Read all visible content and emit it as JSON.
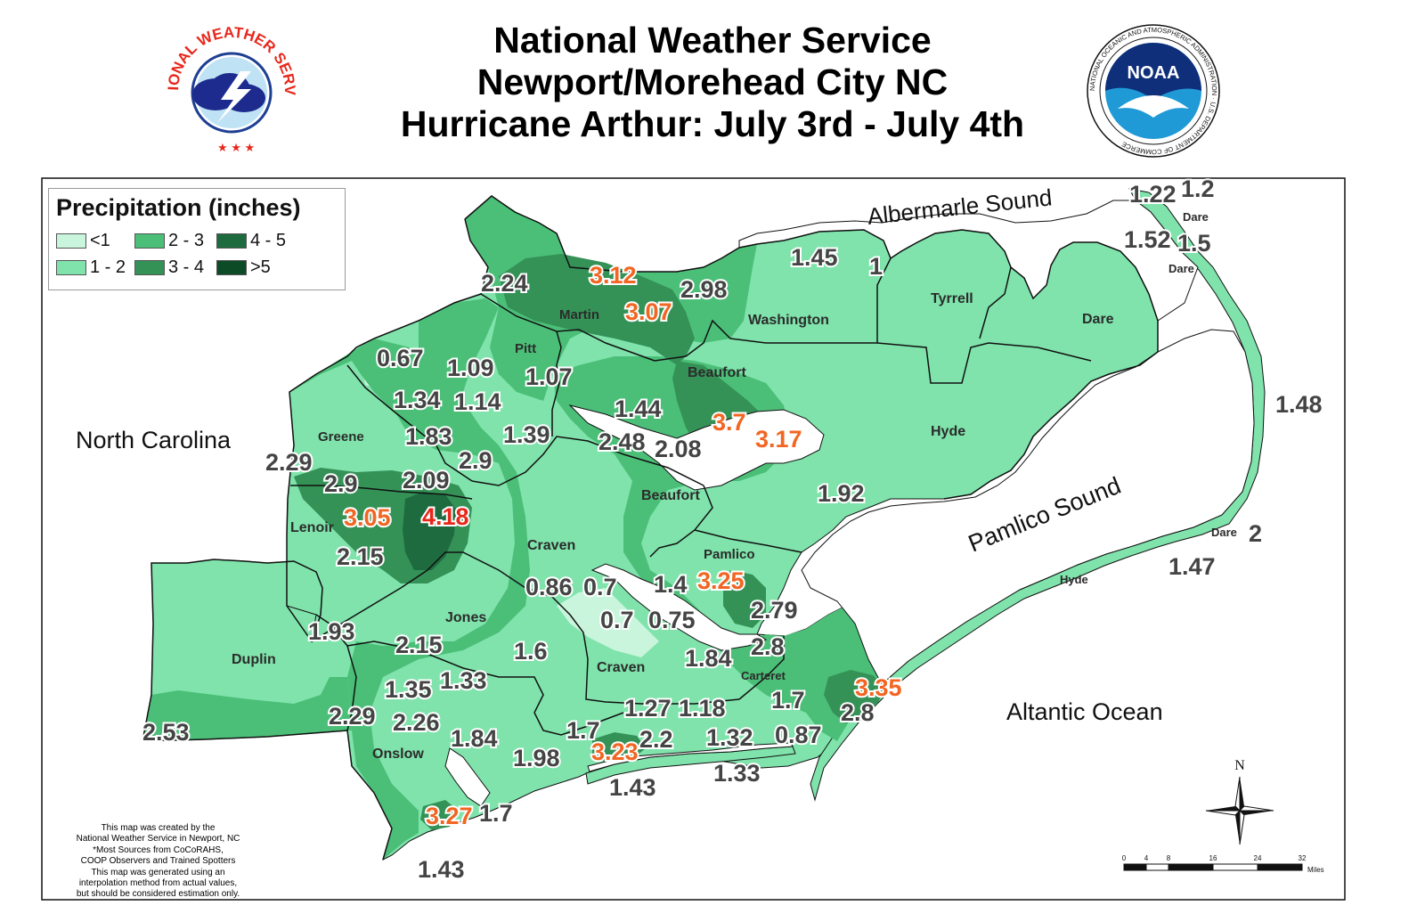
{
  "header": {
    "title_line1": "National Weather Service",
    "title_line2": "Newport/Morehead City NC",
    "title_line3": "Hurricane Arthur: July 3rd - July 4th"
  },
  "logos": {
    "nws": {
      "text": "NATIONAL WEATHER SERVICE",
      "icon": "nws-logo-icon"
    },
    "noaa": {
      "text": "NOAA",
      "ring_text": "NATIONAL OCEANIC AND ATMOSPHERIC ADMINISTRATION · U.S. DEPARTMENT OF COMMERCE",
      "icon": "noaa-logo-icon"
    }
  },
  "legend": {
    "title": "Precipitation (inches)",
    "items": [
      {
        "label": "<1",
        "color": "#c9f5dd"
      },
      {
        "label": "2 - 3",
        "color": "#4bbf78"
      },
      {
        "label": "4 - 5",
        "color": "#1e6b3f"
      },
      {
        "label": "1 - 2",
        "color": "#7fe3ab"
      },
      {
        "label": "3 - 4",
        "color": "#349257"
      },
      {
        "label": ">5",
        "color": "#0d4a26"
      }
    ]
  },
  "colors": {
    "lt1": "#c9f5dd",
    "b12": "#7fe3ab",
    "b23": "#4bbf78",
    "b34": "#349257",
    "b45": "#1e6b3f",
    "gt5": "#0d4a26",
    "water": "#ffffff",
    "border": "#111111",
    "label_normal": "#444444",
    "label_orange": "#f26522",
    "label_red": "#e8271b"
  },
  "places": {
    "state": "North Carolina",
    "water_bodies": [
      "Albermarle Sound",
      "Pamlico Sound",
      "Altantic Ocean"
    ],
    "counties": [
      "Martin",
      "Pitt",
      "Washington",
      "Tyrrell",
      "Dare",
      "Beaufort",
      "Hyde",
      "Greene",
      "Lenoir",
      "Craven",
      "Beaufort",
      "Pamlico",
      "Jones",
      "Duplin",
      "Craven",
      "Onslow",
      "Carteret",
      "Dare",
      "Dare",
      "Dare",
      "Hyde"
    ]
  },
  "observations": [
    {
      "v": "2.24",
      "c": "n"
    },
    {
      "v": "3.12",
      "c": "o"
    },
    {
      "v": "3.07",
      "c": "o"
    },
    {
      "v": "2.98",
      "c": "n"
    },
    {
      "v": "1.45",
      "c": "n"
    },
    {
      "v": "1",
      "c": "n"
    },
    {
      "v": "1.22",
      "c": "n"
    },
    {
      "v": "1.2",
      "c": "n"
    },
    {
      "v": "1.52",
      "c": "n"
    },
    {
      "v": "1.5",
      "c": "n"
    },
    {
      "v": "0.67",
      "c": "n"
    },
    {
      "v": "1.09",
      "c": "n"
    },
    {
      "v": "1.07",
      "c": "n"
    },
    {
      "v": "1.34",
      "c": "n"
    },
    {
      "v": "1.14",
      "c": "n"
    },
    {
      "v": "1.44",
      "c": "n"
    },
    {
      "v": "1.83",
      "c": "n"
    },
    {
      "v": "1.39",
      "c": "n"
    },
    {
      "v": "2.48",
      "c": "n"
    },
    {
      "v": "2.08",
      "c": "n"
    },
    {
      "v": "3.7",
      "c": "o"
    },
    {
      "v": "3.17",
      "c": "o"
    },
    {
      "v": "1.48",
      "c": "n"
    },
    {
      "v": "2.29",
      "c": "n"
    },
    {
      "v": "2.9",
      "c": "n"
    },
    {
      "v": "2.9",
      "c": "n"
    },
    {
      "v": "2.09",
      "c": "n"
    },
    {
      "v": "1.92",
      "c": "n"
    },
    {
      "v": "3.05",
      "c": "o"
    },
    {
      "v": "4.18",
      "c": "r"
    },
    {
      "v": "2.15",
      "c": "n"
    },
    {
      "v": "3.25",
      "c": "o"
    },
    {
      "v": "0.86",
      "c": "n"
    },
    {
      "v": "0.7",
      "c": "n"
    },
    {
      "v": "1.4",
      "c": "n"
    },
    {
      "v": "2",
      "c": "n"
    },
    {
      "v": "1.47",
      "c": "n"
    },
    {
      "v": "2.79",
      "c": "n"
    },
    {
      "v": "0.7",
      "c": "n"
    },
    {
      "v": "0.75",
      "c": "n"
    },
    {
      "v": "1.93",
      "c": "n"
    },
    {
      "v": "2.15",
      "c": "n"
    },
    {
      "v": "1.6",
      "c": "n"
    },
    {
      "v": "2.8",
      "c": "n"
    },
    {
      "v": "1.84",
      "c": "n"
    },
    {
      "v": "3.35",
      "c": "o"
    },
    {
      "v": "1.35",
      "c": "n"
    },
    {
      "v": "1.33",
      "c": "n"
    },
    {
      "v": "1.27",
      "c": "n"
    },
    {
      "v": "1.18",
      "c": "n"
    },
    {
      "v": "1.7",
      "c": "n"
    },
    {
      "v": "2.8",
      "c": "n"
    },
    {
      "v": "2.29",
      "c": "n"
    },
    {
      "v": "2.26",
      "c": "n"
    },
    {
      "v": "2.53",
      "c": "n"
    },
    {
      "v": "1.84",
      "c": "n"
    },
    {
      "v": "1.7",
      "c": "n"
    },
    {
      "v": "3.23",
      "c": "o"
    },
    {
      "v": "2.2",
      "c": "n"
    },
    {
      "v": "1.32",
      "c": "n"
    },
    {
      "v": "0.87",
      "c": "n"
    },
    {
      "v": "1.98",
      "c": "n"
    },
    {
      "v": "1.43",
      "c": "n"
    },
    {
      "v": "1.33",
      "c": "n"
    },
    {
      "v": "3.27",
      "c": "o"
    },
    {
      "v": "1.7",
      "c": "n"
    },
    {
      "v": "1.43",
      "c": "n"
    }
  ],
  "credits": [
    "This map was created by the",
    "National Weather Service in Newport, NC",
    "*Most Sources from CoCoRAHS,",
    "COOP Observers and Trained Spotters",
    "This map was generated using an",
    "interpolation method from actual values,",
    "but should be considered estimation only."
  ],
  "compass": {
    "label": "N",
    "icon": "north-arrow-icon"
  },
  "scale_bar": {
    "ticks": [
      "0",
      "4",
      "8",
      "16",
      "24",
      "32"
    ],
    "unit": "Miles"
  }
}
